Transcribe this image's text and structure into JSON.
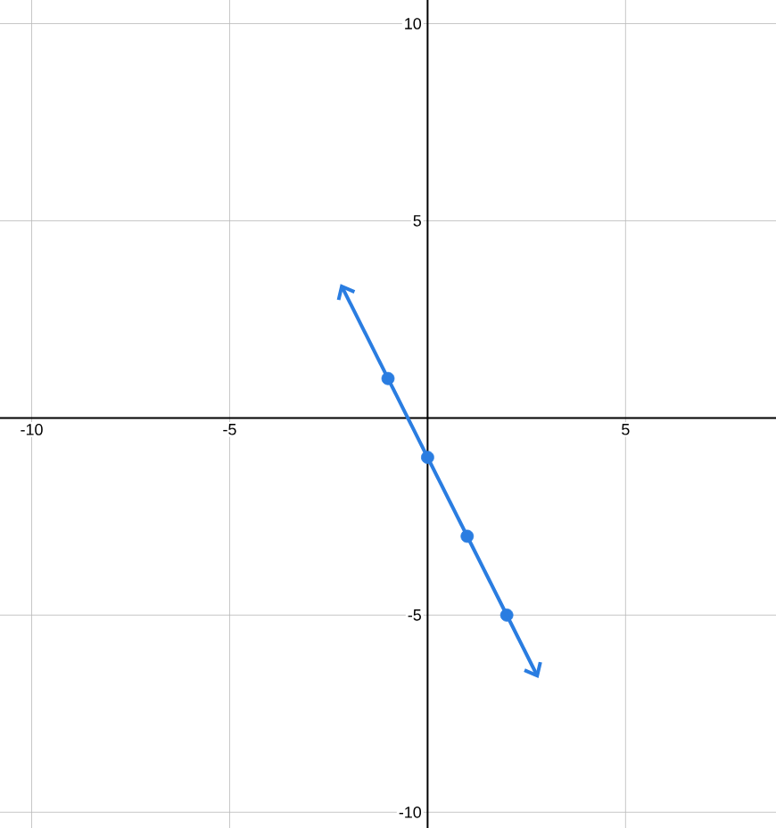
{
  "chart_data": {
    "type": "scatter",
    "xlim": [
      -10.8,
      8.8
    ],
    "ylim": [
      -10.4,
      10.6
    ],
    "xticks": [
      -10,
      -5,
      5
    ],
    "yticks": [
      -10,
      -5,
      5,
      10
    ],
    "grid": true,
    "series": [
      {
        "color": "#2a7de1",
        "x": [
          -1,
          0,
          1,
          2
        ],
        "values": [
          1,
          -1,
          -3,
          -5
        ]
      }
    ]
  }
}
